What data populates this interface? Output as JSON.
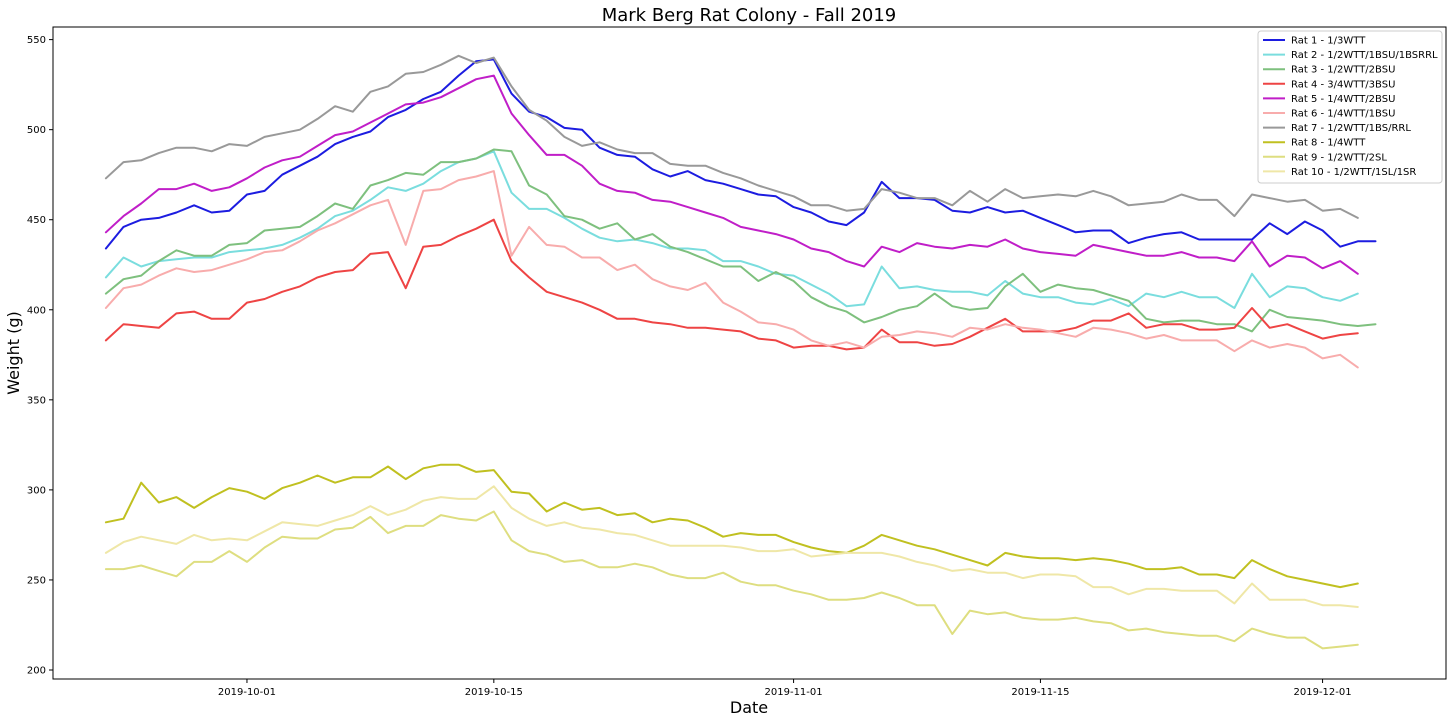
{
  "chart_data": {
    "type": "line",
    "title": "Mark Berg Rat Colony - Fall 2019",
    "xlabel": "Date",
    "ylabel": "Weight (g)",
    "x_start": "2019-09-23",
    "x_step_days": 1,
    "xlim": [
      "2019-09-20",
      "2019-12-08"
    ],
    "ylim": [
      195,
      557
    ],
    "x_ticks": [
      "2019-10-01",
      "2019-10-15",
      "2019-11-01",
      "2019-11-15",
      "2019-12-01"
    ],
    "y_ticks": [
      200,
      250,
      300,
      350,
      400,
      450,
      500,
      550
    ],
    "grid": false,
    "legend_position": "top-right",
    "series": [
      {
        "name": "Rat 1 - 1/3WTT",
        "color": "#1c1ce0",
        "values": [
          434,
          446,
          450,
          451,
          454,
          458,
          454,
          455,
          464,
          466,
          475,
          480,
          485,
          492,
          496,
          499,
          507,
          511,
          517,
          521,
          530,
          538,
          539,
          520,
          510,
          507,
          501,
          500,
          490,
          486,
          485,
          478,
          474,
          477,
          472,
          470,
          467,
          464,
          463,
          457,
          454,
          449,
          447,
          454,
          471,
          462,
          462,
          461,
          455,
          454,
          457,
          454,
          455,
          451,
          447,
          443,
          444,
          444,
          437,
          440,
          442,
          443,
          439,
          439,
          439,
          439,
          448,
          442,
          449,
          444,
          435,
          438,
          438
        ]
      },
      {
        "name": "Rat 2 - 1/2WTT/1BSU/1BSRRL",
        "color": "#7addde",
        "values": [
          418,
          429,
          424,
          427,
          428,
          429,
          429,
          432,
          433,
          434,
          436,
          440,
          445,
          452,
          455,
          461,
          468,
          466,
          470,
          477,
          482,
          484,
          488,
          465,
          456,
          456,
          451,
          445,
          440,
          438,
          439,
          437,
          434,
          434,
          433,
          427,
          427,
          424,
          420,
          419,
          414,
          409,
          402,
          403,
          424,
          412,
          413,
          411,
          410,
          410,
          408,
          416,
          409,
          407,
          407,
          404,
          403,
          406,
          402,
          409,
          407,
          410,
          407,
          407,
          401,
          420,
          407,
          413,
          412,
          407,
          405,
          409
        ]
      },
      {
        "name": "Rat 3 - 1/2WTT/2BSU",
        "color": "#7ec07e",
        "values": [
          409,
          417,
          419,
          427,
          433,
          430,
          430,
          436,
          437,
          444,
          445,
          446,
          452,
          459,
          456,
          469,
          472,
          476,
          475,
          482,
          482,
          484,
          489,
          488,
          469,
          464,
          452,
          450,
          445,
          448,
          439,
          442,
          435,
          432,
          428,
          424,
          424,
          416,
          421,
          416,
          407,
          402,
          399,
          393,
          396,
          400,
          402,
          409,
          402,
          400,
          401,
          413,
          420,
          410,
          414,
          412,
          411,
          408,
          405,
          395,
          393,
          394,
          394,
          392,
          392,
          388,
          400,
          396,
          395,
          394,
          392,
          391,
          392
        ]
      },
      {
        "name": "Rat 4 - 3/4WTT/3BSU",
        "color": "#ee4444",
        "values": [
          383,
          392,
          391,
          390,
          398,
          399,
          395,
          395,
          404,
          406,
          410,
          413,
          418,
          421,
          422,
          431,
          432,
          412,
          435,
          436,
          441,
          445,
          450,
          427,
          418,
          410,
          407,
          404,
          400,
          395,
          395,
          393,
          392,
          390,
          390,
          389,
          388,
          384,
          383,
          379,
          380,
          380,
          378,
          379,
          389,
          382,
          382,
          380,
          381,
          385,
          390,
          395,
          388,
          388,
          388,
          390,
          394,
          394,
          398,
          390,
          392,
          392,
          389,
          389,
          390,
          401,
          390,
          392,
          388,
          384,
          386,
          387
        ]
      },
      {
        "name": "Rat 5 - 1/4WTT/2BSU",
        "color": "#c01ec8",
        "values": [
          443,
          452,
          459,
          467,
          467,
          470,
          466,
          468,
          473,
          479,
          483,
          485,
          491,
          497,
          499,
          504,
          509,
          514,
          515,
          518,
          523,
          528,
          530,
          509,
          497,
          486,
          486,
          480,
          470,
          466,
          465,
          461,
          460,
          457,
          454,
          451,
          446,
          444,
          442,
          439,
          434,
          432,
          427,
          424,
          435,
          432,
          437,
          435,
          434,
          436,
          435,
          439,
          434,
          432,
          431,
          430,
          436,
          434,
          432,
          430,
          430,
          432,
          429,
          429,
          427,
          438,
          424,
          430,
          429,
          423,
          427,
          420
        ]
      },
      {
        "name": "Rat 6 - 1/4WTT/1BSU",
        "color": "#f8acac",
        "values": [
          401,
          412,
          414,
          419,
          423,
          421,
          422,
          425,
          428,
          432,
          433,
          438,
          444,
          448,
          453,
          458,
          461,
          436,
          466,
          467,
          472,
          474,
          477,
          430,
          446,
          436,
          435,
          429,
          429,
          422,
          425,
          417,
          413,
          411,
          415,
          404,
          399,
          393,
          392,
          389,
          383,
          380,
          382,
          379,
          385,
          386,
          388,
          387,
          385,
          390,
          389,
          392,
          390,
          389,
          387,
          385,
          390,
          389,
          387,
          384,
          386,
          383,
          383,
          383,
          377,
          383,
          379,
          381,
          379,
          373,
          375,
          368
        ]
      },
      {
        "name": "Rat 7 - 1/2WTT/1BS/RRL",
        "color": "#999999",
        "values": [
          473,
          482,
          483,
          487,
          490,
          490,
          488,
          492,
          491,
          496,
          498,
          500,
          506,
          513,
          510,
          521,
          524,
          531,
          532,
          536,
          541,
          537,
          540,
          524,
          511,
          505,
          496,
          491,
          493,
          489,
          487,
          487,
          481,
          480,
          480,
          476,
          473,
          469,
          466,
          463,
          458,
          458,
          455,
          456,
          467,
          465,
          462,
          462,
          458,
          466,
          460,
          467,
          462,
          463,
          464,
          463,
          466,
          463,
          458,
          459,
          460,
          464,
          461,
          461,
          452,
          464,
          462,
          460,
          461,
          455,
          456,
          451
        ]
      },
      {
        "name": "Rat 8 - 1/4WTT",
        "color": "#c0c020",
        "values": [
          282,
          284,
          304,
          293,
          296,
          290,
          296,
          301,
          299,
          295,
          301,
          304,
          308,
          304,
          307,
          307,
          313,
          306,
          312,
          314,
          314,
          310,
          311,
          299,
          298,
          288,
          293,
          289,
          290,
          286,
          287,
          282,
          284,
          283,
          279,
          274,
          276,
          275,
          275,
          271,
          268,
          266,
          265,
          269,
          275,
          272,
          269,
          267,
          264,
          261,
          258,
          265,
          263,
          262,
          262,
          261,
          262,
          261,
          259,
          256,
          256,
          257,
          253,
          253,
          251,
          261,
          256,
          252,
          250,
          248,
          246,
          248
        ]
      },
      {
        "name": "Rat 9 - 1/2WTT/2SL",
        "color": "#dede80",
        "values": [
          256,
          256,
          258,
          255,
          252,
          260,
          260,
          266,
          260,
          268,
          274,
          273,
          273,
          278,
          279,
          285,
          276,
          280,
          280,
          286,
          284,
          283,
          288,
          272,
          266,
          264,
          260,
          261,
          257,
          257,
          259,
          257,
          253,
          251,
          251,
          254,
          249,
          247,
          247,
          244,
          242,
          239,
          239,
          240,
          243,
          240,
          236,
          236,
          220,
          233,
          231,
          232,
          229,
          228,
          228,
          229,
          227,
          226,
          222,
          223,
          221,
          220,
          219,
          219,
          216,
          223,
          220,
          218,
          218,
          212,
          213,
          214
        ]
      },
      {
        "name": "Rat 10 - 1/2WTT/1SL/1SR",
        "color": "#efe7a7",
        "values": [
          265,
          271,
          274,
          272,
          270,
          275,
          272,
          273,
          272,
          277,
          282,
          281,
          280,
          283,
          286,
          291,
          286,
          289,
          294,
          296,
          295,
          295,
          302,
          290,
          284,
          280,
          282,
          279,
          278,
          276,
          275,
          272,
          269,
          269,
          269,
          269,
          268,
          266,
          266,
          267,
          263,
          264,
          265,
          265,
          265,
          263,
          260,
          258,
          255,
          256,
          254,
          254,
          251,
          253,
          253,
          252,
          246,
          246,
          242,
          245,
          245,
          244,
          244,
          244,
          237,
          248,
          239,
          239,
          239,
          236,
          236,
          235
        ]
      }
    ]
  }
}
